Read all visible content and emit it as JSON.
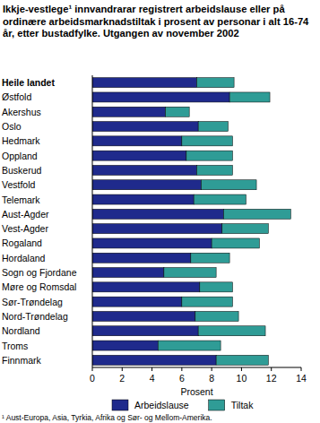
{
  "chart_data": {
    "type": "bar",
    "orientation": "horizontal",
    "stacked": true,
    "title": "Ikkje-vestlege¹ innvandrarar registrert arbeidslause eller på ordinære arbeidsmarknadstiltak i prosent av personar i alt 16-74 år, etter bustadfylke. Utgangen av november 2002",
    "xlabel": "Prosent",
    "footnote": "¹ Aust-Europa, Asia, Tyrkia, Afrika og Sør- og Mellom-Amerika.",
    "categories": [
      "Heile landet",
      "Østfold",
      "Akershus",
      "Oslo",
      "Hedmark",
      "Oppland",
      "Buskerud",
      "Vestfold",
      "Telemark",
      "Aust-Agder",
      "Vest-Agder",
      "Rogaland",
      "Hordaland",
      "Sogn og Fjordane",
      "Møre og Romsdal",
      "Sør-Trøndelag",
      "Nord-Trøndelag",
      "Nordland",
      "Troms",
      "Finnmark"
    ],
    "series": [
      {
        "name": "Arbeidslause",
        "color": "#1f2a8c",
        "values": [
          7.0,
          9.2,
          4.9,
          7.1,
          6.0,
          6.3,
          7.0,
          7.3,
          6.8,
          8.8,
          8.7,
          8.0,
          6.6,
          4.8,
          7.2,
          6.0,
          6.9,
          7.1,
          4.4,
          8.3
        ]
      },
      {
        "name": "Tiltak",
        "color": "#2f9c96",
        "values": [
          2.5,
          2.7,
          1.6,
          2.0,
          3.4,
          3.1,
          2.4,
          3.7,
          3.5,
          4.5,
          3.1,
          3.2,
          2.6,
          3.5,
          2.2,
          3.4,
          2.9,
          4.5,
          4.2,
          3.5
        ]
      }
    ],
    "xlim": [
      0,
      14
    ],
    "xticks": [
      0,
      2,
      4,
      6,
      8,
      10,
      12,
      14
    ],
    "grid": false,
    "legend": "bottom"
  }
}
